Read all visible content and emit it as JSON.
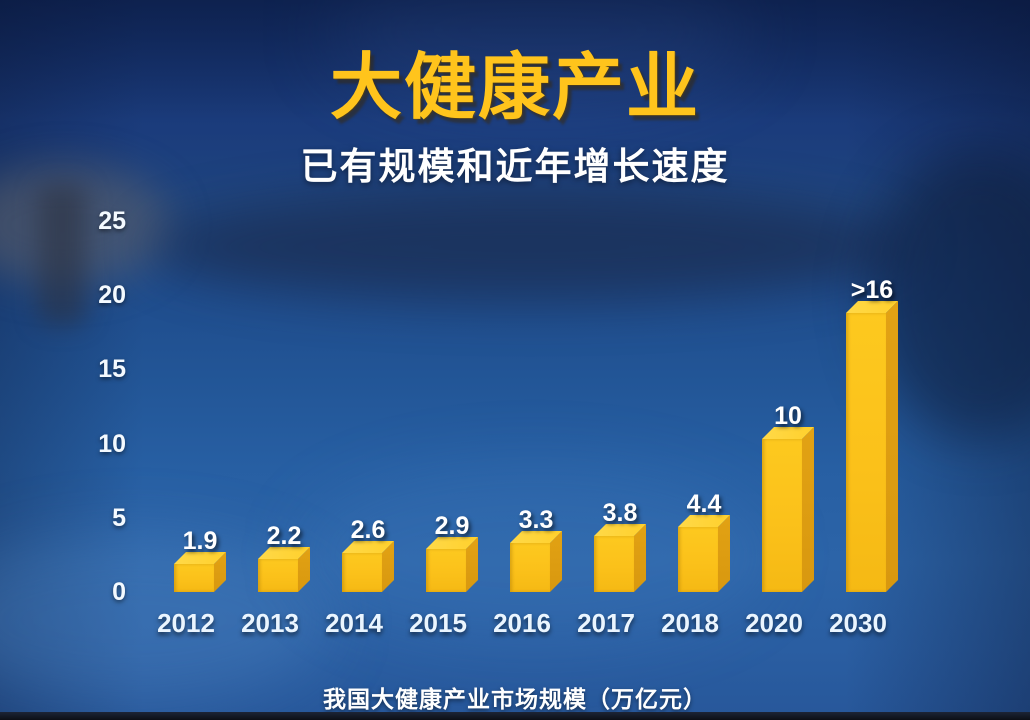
{
  "page": {
    "title": "大健康产业",
    "subtitle": "已有规模和近年增长速度",
    "caption": "我国大健康产业市场规模（万亿元）"
  },
  "colors": {
    "title_gold": "#FFC41C",
    "bar_front": "#FBC11A",
    "bar_top": "#FFD235",
    "bar_side": "#D8980F",
    "background_blue": "#1f4c8c",
    "text_white": "#FFFFFF"
  },
  "chart_data": {
    "type": "bar",
    "title": "大健康产业",
    "subtitle": "已有规模和近年增长速度",
    "caption": "我国大健康产业市场规模（万亿元）",
    "unit": "万亿元",
    "categories": [
      "2012",
      "2013",
      "2014",
      "2015",
      "2016",
      "2017",
      "2018",
      "2020",
      "2030"
    ],
    "values": [
      1.9,
      2.2,
      2.6,
      2.9,
      3.3,
      3.8,
      4.4,
      10,
      16
    ],
    "value_labels": [
      "1.9",
      "2.2",
      "2.6",
      "2.9",
      "3.3",
      "3.8",
      "4.4",
      "10",
      ">16"
    ],
    "bar_drawn_units": [
      1.9,
      2.2,
      2.6,
      2.9,
      3.3,
      3.8,
      4.4,
      10.3,
      18.8
    ],
    "y_ticks": [
      0,
      5,
      10,
      15,
      20,
      25
    ],
    "ylim": [
      0,
      25
    ],
    "xlabel": "",
    "ylabel": "",
    "grid": false,
    "legend": false,
    "bar_style": "3d-gold"
  }
}
